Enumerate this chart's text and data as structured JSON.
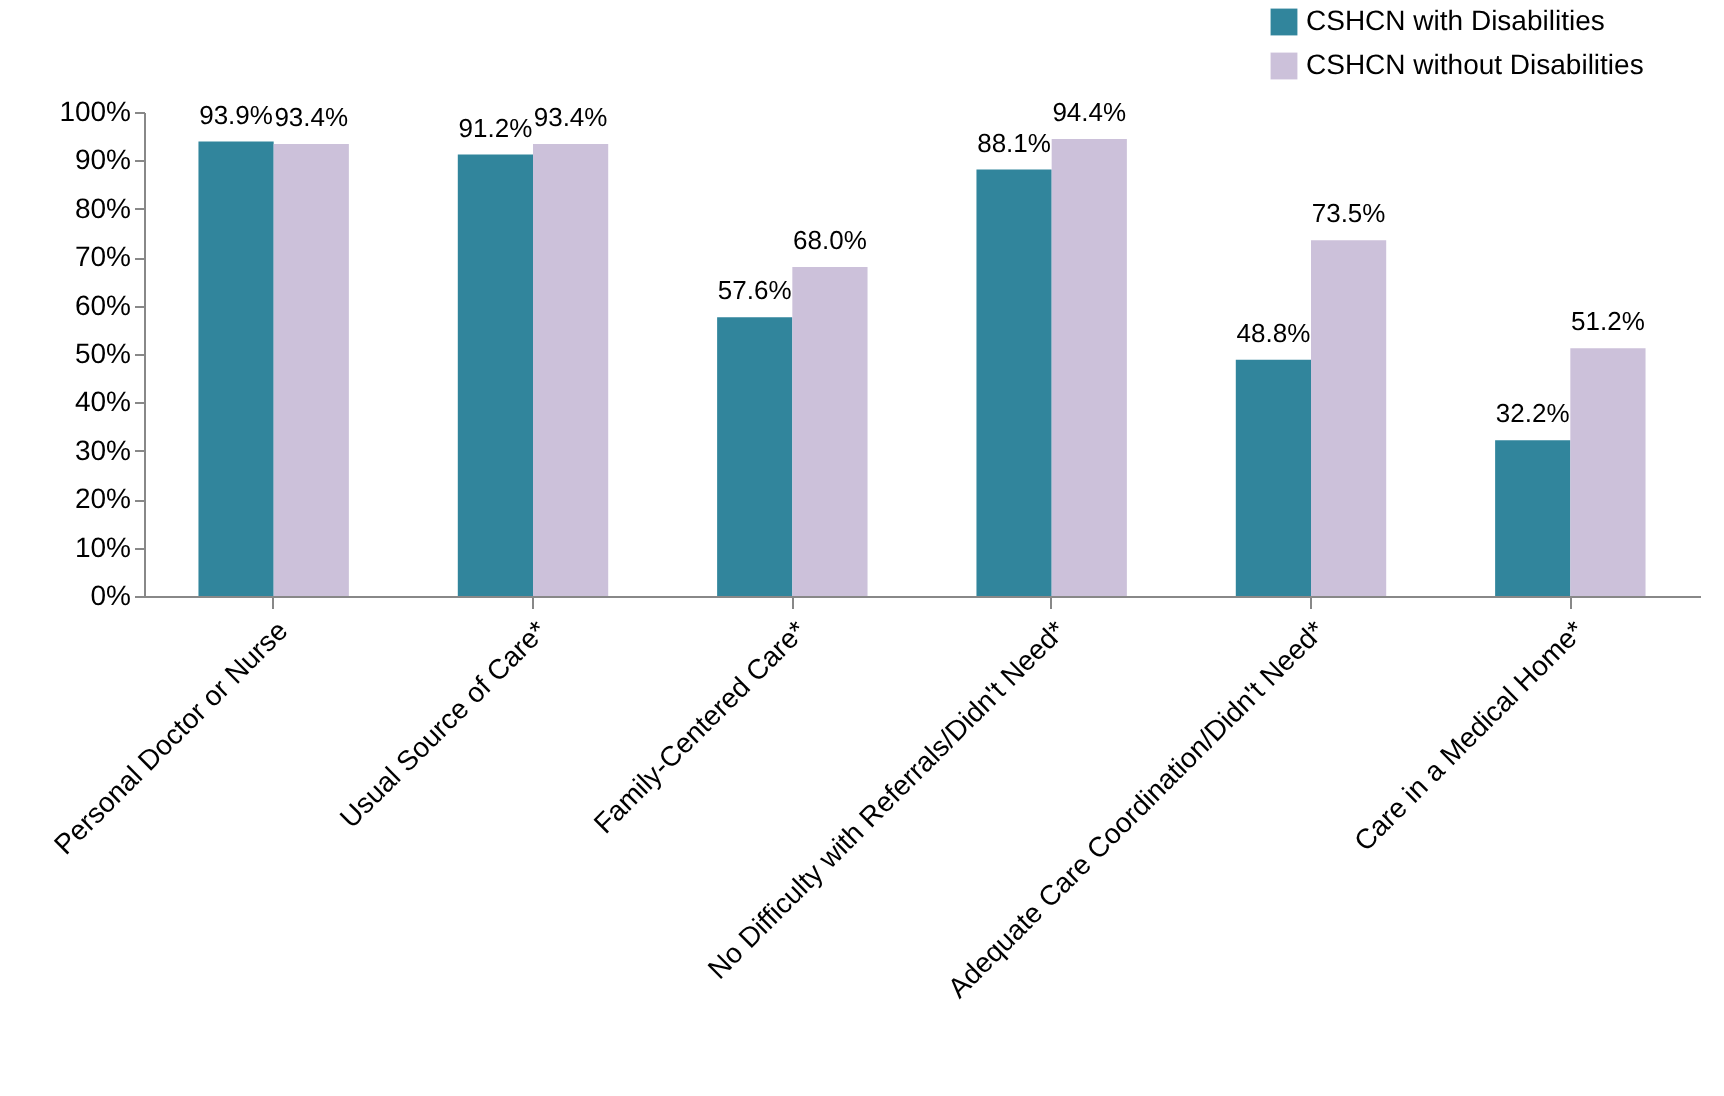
{
  "chart_data": {
    "type": "bar",
    "categories": [
      "Personal Doctor or Nurse",
      "Usual Source of Care*",
      "Family-Centered Care*",
      "No Difficulty with Referrals/Didn't Need*",
      "Adequate Care Coordination/Didn't Need*",
      "Care in a Medical Home*"
    ],
    "series": [
      {
        "name": "CSHCN with Disabilities",
        "color": "#31859c",
        "values": [
          93.9,
          91.2,
          57.6,
          88.1,
          48.8,
          32.2
        ],
        "value_labels": [
          "93.9%",
          "91.2%",
          "57.6%",
          "88.1%",
          "48.8%",
          "32.2%"
        ]
      },
      {
        "name": "CSHCN without Disabilities",
        "color": "#ccc1da",
        "values": [
          93.4,
          93.4,
          68.0,
          94.4,
          73.5,
          51.2
        ],
        "value_labels": [
          "93.4%",
          "93.4%",
          "68.0%",
          "94.4%",
          "73.5%",
          "51.2%"
        ]
      }
    ],
    "ylim": [
      0,
      100
    ],
    "yticks": [
      {
        "value": 0,
        "label": "0%"
      },
      {
        "value": 10,
        "label": "10%"
      },
      {
        "value": 20,
        "label": "20%"
      },
      {
        "value": 30,
        "label": "30%"
      },
      {
        "value": 40,
        "label": "40%"
      },
      {
        "value": 50,
        "label": "50%"
      },
      {
        "value": 60,
        "label": "60%"
      },
      {
        "value": 70,
        "label": "70%"
      },
      {
        "value": 80,
        "label": "80%"
      },
      {
        "value": 90,
        "label": "90%"
      },
      {
        "value": 100,
        "label": "100%"
      }
    ],
    "grid": false,
    "legend": "top right"
  }
}
